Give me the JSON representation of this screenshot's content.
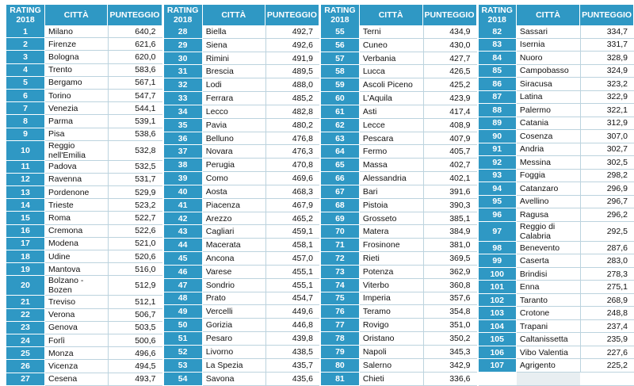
{
  "headers": {
    "rating": "RATING",
    "year": "2018",
    "city": "CITTÀ",
    "score": "PUNTEGGIO"
  },
  "columns": [
    [
      {
        "rank": "1",
        "city": "Milano",
        "score": "640,2"
      },
      {
        "rank": "2",
        "city": "Firenze",
        "score": "621,6"
      },
      {
        "rank": "3",
        "city": "Bologna",
        "score": "620,0"
      },
      {
        "rank": "4",
        "city": "Trento",
        "score": "583,6"
      },
      {
        "rank": "5",
        "city": "Bergamo",
        "score": "567,1"
      },
      {
        "rank": "6",
        "city": "Torino",
        "score": "547,7"
      },
      {
        "rank": "7",
        "city": "Venezia",
        "score": "544,1"
      },
      {
        "rank": "8",
        "city": "Parma",
        "score": "539,1"
      },
      {
        "rank": "9",
        "city": "Pisa",
        "score": "538,6"
      },
      {
        "rank": "10",
        "city": "Reggio nell'Emilia",
        "score": "532,8"
      },
      {
        "rank": "11",
        "city": "Padova",
        "score": "532,5"
      },
      {
        "rank": "12",
        "city": "Ravenna",
        "score": "531,7"
      },
      {
        "rank": "13",
        "city": "Pordenone",
        "score": "529,9"
      },
      {
        "rank": "14",
        "city": "Trieste",
        "score": "523,2"
      },
      {
        "rank": "15",
        "city": "Roma",
        "score": "522,7"
      },
      {
        "rank": "16",
        "city": "Cremona",
        "score": "522,6"
      },
      {
        "rank": "17",
        "city": "Modena",
        "score": "521,0"
      },
      {
        "rank": "18",
        "city": "Udine",
        "score": "520,6"
      },
      {
        "rank": "19",
        "city": "Mantova",
        "score": "516,0"
      },
      {
        "rank": "20",
        "city": "Bolzano - Bozen",
        "score": "512,9"
      },
      {
        "rank": "21",
        "city": "Treviso",
        "score": "512,1"
      },
      {
        "rank": "22",
        "city": "Verona",
        "score": "506,7"
      },
      {
        "rank": "23",
        "city": "Genova",
        "score": "503,5"
      },
      {
        "rank": "24",
        "city": "Forlì",
        "score": "500,6"
      },
      {
        "rank": "25",
        "city": "Monza",
        "score": "496,6"
      },
      {
        "rank": "26",
        "city": "Vicenza",
        "score": "494,5"
      },
      {
        "rank": "27",
        "city": "Cesena",
        "score": "493,7"
      }
    ],
    [
      {
        "rank": "28",
        "city": "Biella",
        "score": "492,7"
      },
      {
        "rank": "29",
        "city": "Siena",
        "score": "492,6"
      },
      {
        "rank": "30",
        "city": "Rimini",
        "score": "491,9"
      },
      {
        "rank": "31",
        "city": "Brescia",
        "score": "489,5"
      },
      {
        "rank": "32",
        "city": "Lodi",
        "score": "488,0"
      },
      {
        "rank": "33",
        "city": "Ferrara",
        "score": "485,2"
      },
      {
        "rank": "34",
        "city": "Lecco",
        "score": "482,8"
      },
      {
        "rank": "35",
        "city": "Pavia",
        "score": "480,2"
      },
      {
        "rank": "36",
        "city": "Belluno",
        "score": "476,8"
      },
      {
        "rank": "37",
        "city": "Novara",
        "score": "476,3"
      },
      {
        "rank": "38",
        "city": "Perugia",
        "score": "470,8"
      },
      {
        "rank": "39",
        "city": "Como",
        "score": "469,6"
      },
      {
        "rank": "40",
        "city": "Aosta",
        "score": "468,3"
      },
      {
        "rank": "41",
        "city": "Piacenza",
        "score": "467,9"
      },
      {
        "rank": "42",
        "city": "Arezzo",
        "score": "465,2"
      },
      {
        "rank": "43",
        "city": "Cagliari",
        "score": "459,1"
      },
      {
        "rank": "44",
        "city": "Macerata",
        "score": "458,1"
      },
      {
        "rank": "45",
        "city": "Ancona",
        "score": "457,0"
      },
      {
        "rank": "46",
        "city": "Varese",
        "score": "455,1"
      },
      {
        "rank": "47",
        "city": "Sondrio",
        "score": "455,1"
      },
      {
        "rank": "48",
        "city": "Prato",
        "score": "454,7"
      },
      {
        "rank": "49",
        "city": "Vercelli",
        "score": "449,6"
      },
      {
        "rank": "50",
        "city": "Gorizia",
        "score": "446,8"
      },
      {
        "rank": "51",
        "city": "Pesaro",
        "score": "439,8"
      },
      {
        "rank": "52",
        "city": "Livorno",
        "score": "438,5"
      },
      {
        "rank": "53",
        "city": "La Spezia",
        "score": "435,7"
      },
      {
        "rank": "54",
        "city": "Savona",
        "score": "435,6"
      }
    ],
    [
      {
        "rank": "55",
        "city": "Terni",
        "score": "434,9"
      },
      {
        "rank": "56",
        "city": "Cuneo",
        "score": "430,0"
      },
      {
        "rank": "57",
        "city": "Verbania",
        "score": "427,7"
      },
      {
        "rank": "58",
        "city": "Lucca",
        "score": "426,5"
      },
      {
        "rank": "59",
        "city": "Ascoli Piceno",
        "score": "425,2"
      },
      {
        "rank": "60",
        "city": "L'Aquila",
        "score": "423,9"
      },
      {
        "rank": "61",
        "city": "Asti",
        "score": "417,4"
      },
      {
        "rank": "62",
        "city": "Lecce",
        "score": "408,9"
      },
      {
        "rank": "63",
        "city": "Pescara",
        "score": "407,9"
      },
      {
        "rank": "64",
        "city": "Fermo",
        "score": "405,7"
      },
      {
        "rank": "65",
        "city": "Massa",
        "score": "402,7"
      },
      {
        "rank": "66",
        "city": "Alessandria",
        "score": "402,1"
      },
      {
        "rank": "67",
        "city": "Bari",
        "score": "391,6"
      },
      {
        "rank": "68",
        "city": "Pistoia",
        "score": "390,3"
      },
      {
        "rank": "69",
        "city": "Grosseto",
        "score": "385,1"
      },
      {
        "rank": "70",
        "city": "Matera",
        "score": "384,9"
      },
      {
        "rank": "71",
        "city": "Frosinone",
        "score": "381,0"
      },
      {
        "rank": "72",
        "city": "Rieti",
        "score": "369,5"
      },
      {
        "rank": "73",
        "city": "Potenza",
        "score": "362,9"
      },
      {
        "rank": "74",
        "city": "Viterbo",
        "score": "360,8"
      },
      {
        "rank": "75",
        "city": "Imperia",
        "score": "357,6"
      },
      {
        "rank": "76",
        "city": "Teramo",
        "score": "354,8"
      },
      {
        "rank": "77",
        "city": "Rovigo",
        "score": "351,0"
      },
      {
        "rank": "78",
        "city": "Oristano",
        "score": "350,2"
      },
      {
        "rank": "79",
        "city": "Napoli",
        "score": "345,3"
      },
      {
        "rank": "80",
        "city": "Salerno",
        "score": "342,9"
      },
      {
        "rank": "81",
        "city": "Chieti",
        "score": "336,6"
      }
    ],
    [
      {
        "rank": "82",
        "city": "Sassari",
        "score": "334,7"
      },
      {
        "rank": "83",
        "city": "Isernia",
        "score": "331,7"
      },
      {
        "rank": "84",
        "city": "Nuoro",
        "score": "328,9"
      },
      {
        "rank": "85",
        "city": "Campobasso",
        "score": "324,9"
      },
      {
        "rank": "86",
        "city": "Siracusa",
        "score": "323,2"
      },
      {
        "rank": "87",
        "city": "Latina",
        "score": "322,9"
      },
      {
        "rank": "88",
        "city": "Palermo",
        "score": "322,1"
      },
      {
        "rank": "89",
        "city": "Catania",
        "score": "312,9"
      },
      {
        "rank": "90",
        "city": "Cosenza",
        "score": "307,0"
      },
      {
        "rank": "91",
        "city": "Andria",
        "score": "302,7"
      },
      {
        "rank": "92",
        "city": "Messina",
        "score": "302,5"
      },
      {
        "rank": "93",
        "city": "Foggia",
        "score": "298,2"
      },
      {
        "rank": "94",
        "city": "Catanzaro",
        "score": "296,9"
      },
      {
        "rank": "95",
        "city": "Avellino",
        "score": "296,7"
      },
      {
        "rank": "96",
        "city": "Ragusa",
        "score": "296,2"
      },
      {
        "rank": "97",
        "city": "Reggio di Calabria",
        "score": "292,5"
      },
      {
        "rank": "98",
        "city": "Benevento",
        "score": "287,6"
      },
      {
        "rank": "99",
        "city": "Caserta",
        "score": "283,0"
      },
      {
        "rank": "100",
        "city": "Brindisi",
        "score": "278,3"
      },
      {
        "rank": "101",
        "city": "Enna",
        "score": "275,1"
      },
      {
        "rank": "102",
        "city": "Taranto",
        "score": "268,9"
      },
      {
        "rank": "103",
        "city": "Crotone",
        "score": "248,8"
      },
      {
        "rank": "104",
        "city": "Trapani",
        "score": "237,4"
      },
      {
        "rank": "105",
        "city": "Caltanissetta",
        "score": "235,9"
      },
      {
        "rank": "106",
        "city": "Vibo Valentia",
        "score": "227,6"
      },
      {
        "rank": "107",
        "city": "Agrigento",
        "score": "225,2"
      }
    ]
  ]
}
